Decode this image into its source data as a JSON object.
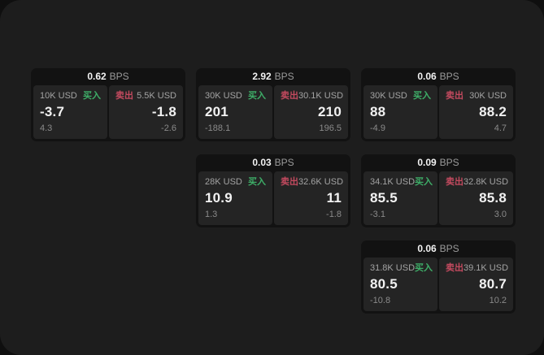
{
  "colors": {
    "outer_background": "#0f0f0f",
    "page_background": "#1d1d1d",
    "card_bg": "#121212",
    "panel_bg": "#242424",
    "buy_green": "#3eae68",
    "sell_red": "#c34a5f",
    "value_white": "#f2f2f2",
    "label_gray": "#a3a3a3",
    "sub_gray": "#8a8a8a",
    "bps_gray": "#9b9b9b"
  },
  "labels": {
    "bps": "BPS",
    "buy": "买入",
    "sell": "卖出"
  },
  "cards": [
    {
      "col": 1,
      "row": 1,
      "bps": "0.62",
      "buy": {
        "amount": "10K USD",
        "value": "-3.7",
        "sub": "4.3"
      },
      "sell": {
        "amount": "5.5K USD",
        "value": "-1.8",
        "sub": "-2.6"
      }
    },
    {
      "col": 2,
      "row": 1,
      "bps": "2.92",
      "buy": {
        "amount": "30K USD",
        "value": "201",
        "sub": "-188.1"
      },
      "sell": {
        "amount": "30.1K USD",
        "value": "210",
        "sub": "196.5"
      }
    },
    {
      "col": 3,
      "row": 1,
      "bps": "0.06",
      "buy": {
        "amount": "30K USD",
        "value": "88",
        "sub": "-4.9"
      },
      "sell": {
        "amount": "30K USD",
        "value": "88.2",
        "sub": "4.7"
      }
    },
    {
      "col": 2,
      "row": 2,
      "bps": "0.03",
      "buy": {
        "amount": "28K USD",
        "value": "10.9",
        "sub": "1.3"
      },
      "sell": {
        "amount": "32.6K USD",
        "value": "11",
        "sub": "-1.8"
      }
    },
    {
      "col": 3,
      "row": 2,
      "bps": "0.09",
      "buy": {
        "amount": "34.1K USD",
        "value": "85.5",
        "sub": "-3.1"
      },
      "sell": {
        "amount": "32.8K USD",
        "value": "85.8",
        "sub": "3.0"
      }
    },
    {
      "col": 3,
      "row": 3,
      "bps": "0.06",
      "buy": {
        "amount": "31.8K USD",
        "value": "80.5",
        "sub": "-10.8"
      },
      "sell": {
        "amount": "39.1K USD",
        "value": "80.7",
        "sub": "10.2"
      }
    }
  ]
}
